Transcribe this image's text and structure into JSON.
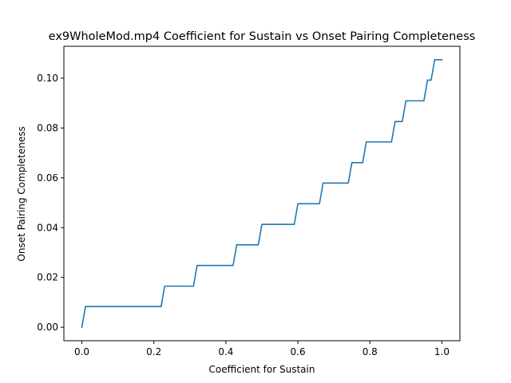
{
  "chart_data": {
    "type": "line",
    "title": "ex9WholeMod.mp4 Coefficient for Sustain vs Onset Pairing Completeness",
    "xlabel": "Coefficient for Sustain",
    "ylabel": "Onset Pairing Completeness",
    "xlim": [
      -0.05,
      1.05
    ],
    "ylim": [
      -0.0054,
      0.1128
    ],
    "grid": false,
    "x_ticks": [
      0.0,
      0.2,
      0.4,
      0.6,
      0.8,
      1.0
    ],
    "x_tick_labels": [
      "0.0",
      "0.2",
      "0.4",
      "0.6",
      "0.8",
      "1.0"
    ],
    "y_ticks": [
      0.0,
      0.02,
      0.04,
      0.06,
      0.08,
      0.1
    ],
    "y_tick_labels": [
      "0.00",
      "0.02",
      "0.04",
      "0.06",
      "0.08",
      "0.10"
    ],
    "series": [
      {
        "color": "#1f77b4",
        "x": [
          0.0,
          0.01,
          0.22,
          0.23,
          0.31,
          0.32,
          0.42,
          0.43,
          0.49,
          0.5,
          0.59,
          0.6,
          0.66,
          0.67,
          0.74,
          0.75,
          0.78,
          0.79,
          0.86,
          0.87,
          0.89,
          0.9,
          0.95,
          0.96,
          0.97,
          0.98,
          1.0
        ],
        "y": [
          0.0,
          0.0083,
          0.0083,
          0.0165,
          0.0165,
          0.0248,
          0.0248,
          0.0331,
          0.0331,
          0.0413,
          0.0413,
          0.0496,
          0.0496,
          0.0579,
          0.0579,
          0.0661,
          0.0661,
          0.0744,
          0.0744,
          0.0826,
          0.0826,
          0.0909,
          0.0909,
          0.0992,
          0.0992,
          0.1074,
          0.1074
        ]
      }
    ]
  }
}
